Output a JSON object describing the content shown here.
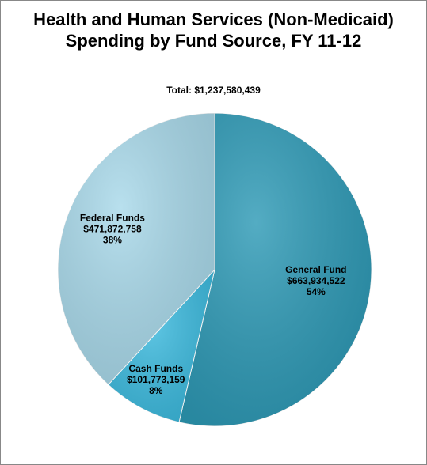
{
  "chart_data": {
    "type": "pie",
    "title": "Health and Human Services (Non-Medicaid) Spending by Fund Source, FY 11-12",
    "subtitle": "Total: $1,237,580,439",
    "categories": [
      "General Fund",
      "Cash Funds",
      "Federal Funds"
    ],
    "values": [
      663934522,
      101773159,
      471872758
    ],
    "value_labels": [
      "$663,934,522",
      "$101,773,159",
      "$471,872,758"
    ],
    "percent_labels": [
      "54%",
      "8%",
      "38%"
    ],
    "colors": [
      "#2e9ab6",
      "#3dbbdf",
      "#a9d9ea"
    ]
  }
}
